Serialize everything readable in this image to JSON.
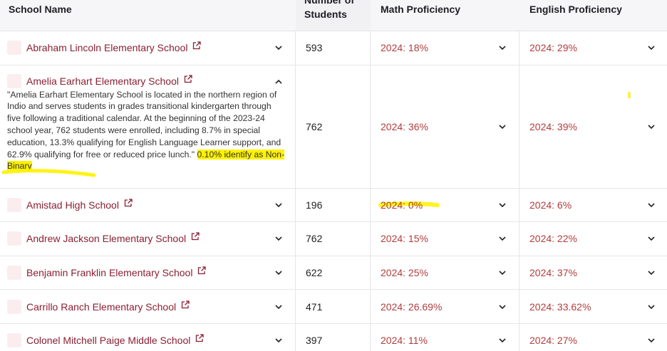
{
  "header": {
    "columns": [
      "School Name",
      "Number of Students",
      "Math Proficiency",
      "English Proficiency"
    ]
  },
  "table": {
    "rows": [
      {
        "name": "Abraham Lincoln Elementary School",
        "students": "593",
        "math": "2024: 18%",
        "english": "2024: 29%"
      },
      {
        "name": "Amelia Earhart Elementary School",
        "description": "\"Amelia Earhart Elementary School is located in the northern region of Indio and serves students in grades transitional kindergarten through five following a traditional calendar. At the beginning of the 2023-24 school year, 762 students were enrolled, including 8.7% in special education, 13.3% qualifying for English Language Learner support, and 62.9% qualifying for free or reduced price lunch.\"",
        "highlight": "0.10% identify as Non-Binary",
        "students": "762",
        "math": "2024: 36%",
        "english": "2024: 39%"
      },
      {
        "name": "Amistad High School",
        "students": "196",
        "math": "2024: 0%",
        "english": "2024: 6%"
      },
      {
        "name": "Andrew Jackson Elementary School",
        "students": "762",
        "math": "2024: 15%",
        "english": "2024: 22%"
      },
      {
        "name": "Benjamin Franklin Elementary School",
        "students": "622",
        "math": "2024: 25%",
        "english": "2024: 37%"
      },
      {
        "name": "Carrillo Ranch Elementary School",
        "students": "471",
        "math": "2024: 26.69%",
        "english": "2024: 33.62%"
      },
      {
        "name": "Colonel Mitchell Paige Middle School",
        "students": "397",
        "math": "2024: 11%",
        "english": "2024: 27%"
      }
    ]
  }
}
